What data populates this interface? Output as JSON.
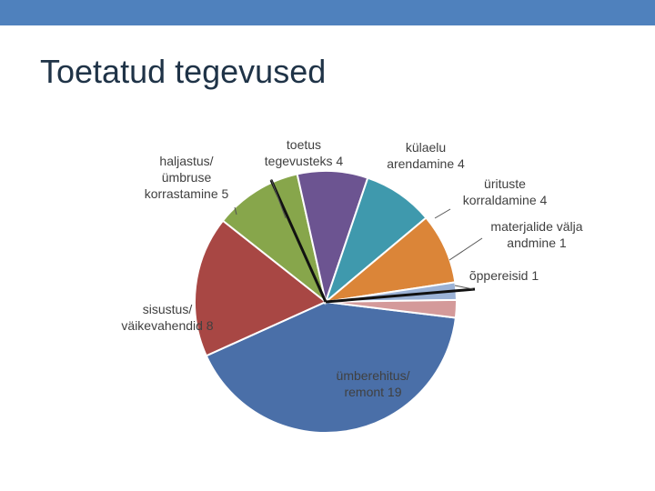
{
  "slide": {
    "title": "Toetatud tegevused",
    "accent_color": "#4f81bd",
    "title_color": "#1f3347"
  },
  "chart_data": {
    "type": "pie",
    "title": "",
    "slices": [
      {
        "label_lines": [
          "ümberehitus/",
          "remont 19"
        ],
        "category": "ümberehitus/ remont",
        "value": 19,
        "color": "#4a6fa8"
      },
      {
        "label_lines": [
          "sisustus/",
          "väikevahendid 8"
        ],
        "category": "sisustus/ väikevahendid",
        "value": 8,
        "color": "#a84744"
      },
      {
        "label_lines": [
          "haljastus/",
          "ümbruse",
          "korrastamine 5"
        ],
        "category": "haljastus/ ümbruse korrastamine",
        "value": 5,
        "color": "#87a64b"
      },
      {
        "label_lines": [
          "toetus",
          "tegevusteks 4"
        ],
        "category": "toetus tegevusteks",
        "value": 4,
        "color": "#6c5491"
      },
      {
        "label_lines": [
          "külaelu",
          "arendamine 4"
        ],
        "category": "külaelu arendamine",
        "value": 4,
        "color": "#3f99ad"
      },
      {
        "label_lines": [
          "ürituste",
          "korraldamine 4"
        ],
        "category": "ürituste korraldamine",
        "value": 4,
        "color": "#db8538"
      },
      {
        "label_lines": [
          "materjalide välja",
          "andmine 1"
        ],
        "category": "materjalide välja andmine",
        "value": 1,
        "color": "#9bb2d6"
      },
      {
        "label_lines": [
          "õppereisid 1"
        ],
        "category": "õppereisid",
        "value": 1,
        "color": "#d49a9a"
      }
    ]
  }
}
